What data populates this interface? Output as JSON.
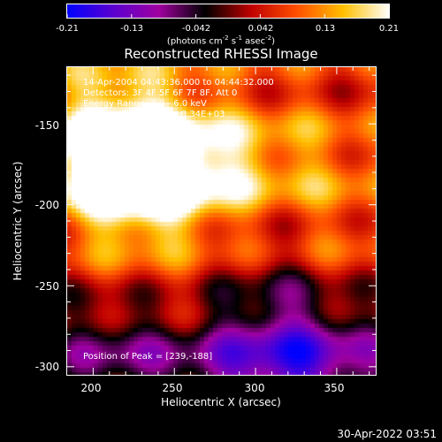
{
  "chart_data": {
    "type": "heatmap",
    "title": "Reconstructed RHESSI Image",
    "xlabel": "Heliocentric X (arcsec)",
    "ylabel": "Heliocentric Y (arcsec)",
    "xlim": [
      184,
      374
    ],
    "ylim": [
      -305,
      -115
    ],
    "xticks": [
      200,
      250,
      300,
      350
    ],
    "yticks": [
      -150,
      -200,
      -250,
      -300
    ],
    "colorbar": {
      "ticks": [
        "-0.21",
        "-0.13",
        "-0.042",
        "0.042",
        "0.13",
        "0.21"
      ],
      "unit_main": "(photons cm",
      "unit_sup1": "-2",
      "unit_mid": " s",
      "unit_sup2": "-1",
      "unit_end": " asec",
      "unit_sup3": "-2",
      "unit_close": ")",
      "range": [
        -0.21,
        0.21
      ],
      "colors": [
        "#0000ff",
        "#5a00d0",
        "#a000a0",
        "#000000",
        "#c00000",
        "#ff5000",
        "#ffc000",
        "#ffffff"
      ]
    },
    "peak": {
      "x": 239,
      "y": -188
    },
    "source_blobs": [
      {
        "x": 232,
        "y": -182,
        "amp": 0.2,
        "sx": 35,
        "sy": 28
      },
      {
        "x": 215,
        "y": -160,
        "amp": 0.12,
        "sx": 30,
        "sy": 30
      },
      {
        "x": 300,
        "y": -175,
        "amp": 0.08,
        "sx": 60,
        "sy": 25
      },
      {
        "x": 360,
        "y": -240,
        "amp": 0.06,
        "sx": 25,
        "sy": 35
      },
      {
        "x": 260,
        "y": -255,
        "amp": 0.04,
        "sx": 40,
        "sy": 20
      }
    ]
  },
  "info": {
    "line1": "14-Apr-2004 04:43:36.000 to 04:44:32.000",
    "line2": "Detectors: 3F 4F 5F 6F 7F 8F, Att 0",
    "line3": "Energy Range: 3.0 - 6.0 keV",
    "line4": "Clean     Total counts: 8.34E+03",
    "peak_text": "Position of Peak = [239,-188]"
  },
  "timestamp": "30-Apr-2022 03:51"
}
